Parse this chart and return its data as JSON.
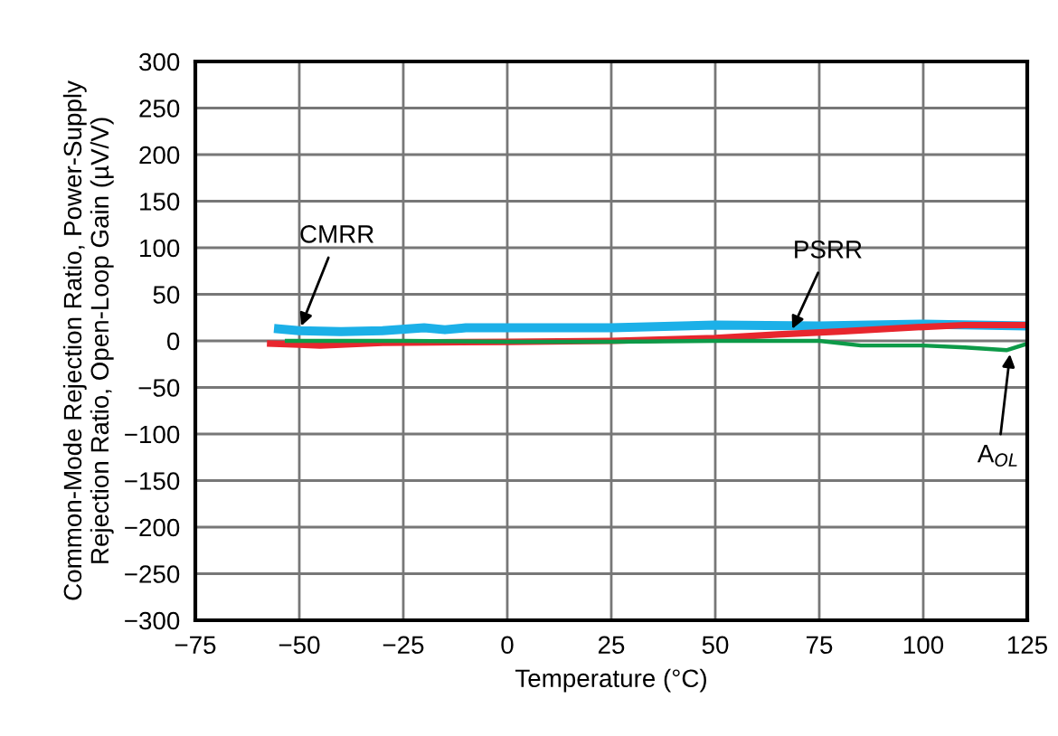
{
  "chart_data": {
    "type": "line",
    "xlabel": "Temperature (°C)",
    "ylabel": "Common-Mode Rejection Ratio, Power-Supply\nRejection Ratio, Open-Loop Gain (µV/V)",
    "series": [
      {
        "color": "#1cb0e8",
        "x": [
          -55,
          -50,
          -40,
          -30,
          -20,
          -15,
          -10,
          0,
          25,
          50,
          75,
          100,
          125
        ],
        "values": [
          13,
          11,
          10,
          11,
          14,
          12,
          14,
          14,
          14,
          17,
          16,
          18,
          16
        ]
      },
      {
        "color": "#e8262e",
        "x": [
          -57,
          -50,
          -45,
          -30,
          0,
          25,
          50,
          65,
          80,
          100,
          110,
          125
        ],
        "values": [
          -3,
          -4,
          -5,
          -2,
          -1,
          0,
          3,
          7,
          10,
          15,
          17,
          17
        ]
      },
      {
        "color": "#0d9a48",
        "x": [
          -53,
          -25,
          0,
          25,
          50,
          75,
          85,
          100,
          110,
          120,
          125
        ],
        "values": [
          0,
          0,
          -1,
          -1,
          0,
          0,
          -5,
          -5,
          -7,
          -10,
          -3
        ]
      }
    ],
    "xlim": [
      -75,
      125
    ],
    "ylim": [
      -300,
      300
    ],
    "xticks": [
      {
        "value": -75,
        "label": "−75"
      },
      {
        "value": -50,
        "label": "−50"
      },
      {
        "value": -25,
        "label": "−25"
      },
      0,
      25,
      50,
      75,
      100,
      125
    ],
    "yticks": [
      {
        "value": -300,
        "label": "−300"
      },
      {
        "value": -250,
        "label": "−250"
      },
      {
        "value": -200,
        "label": "−200"
      },
      {
        "value": -150,
        "label": "−150"
      },
      {
        "value": -100,
        "label": "−100"
      },
      {
        "value": -50,
        "label": "−50"
      },
      0,
      50,
      100,
      150,
      200,
      250,
      300
    ],
    "grid": true,
    "legend": false,
    "annotations": [
      {
        "text": "CMRR",
        "x": -50,
        "y": 11
      },
      {
        "text": "PSRR",
        "x": 68,
        "y": 8
      },
      {
        "text": "A$_{OL}$",
        "x": 121,
        "y": -9
      }
    ]
  }
}
